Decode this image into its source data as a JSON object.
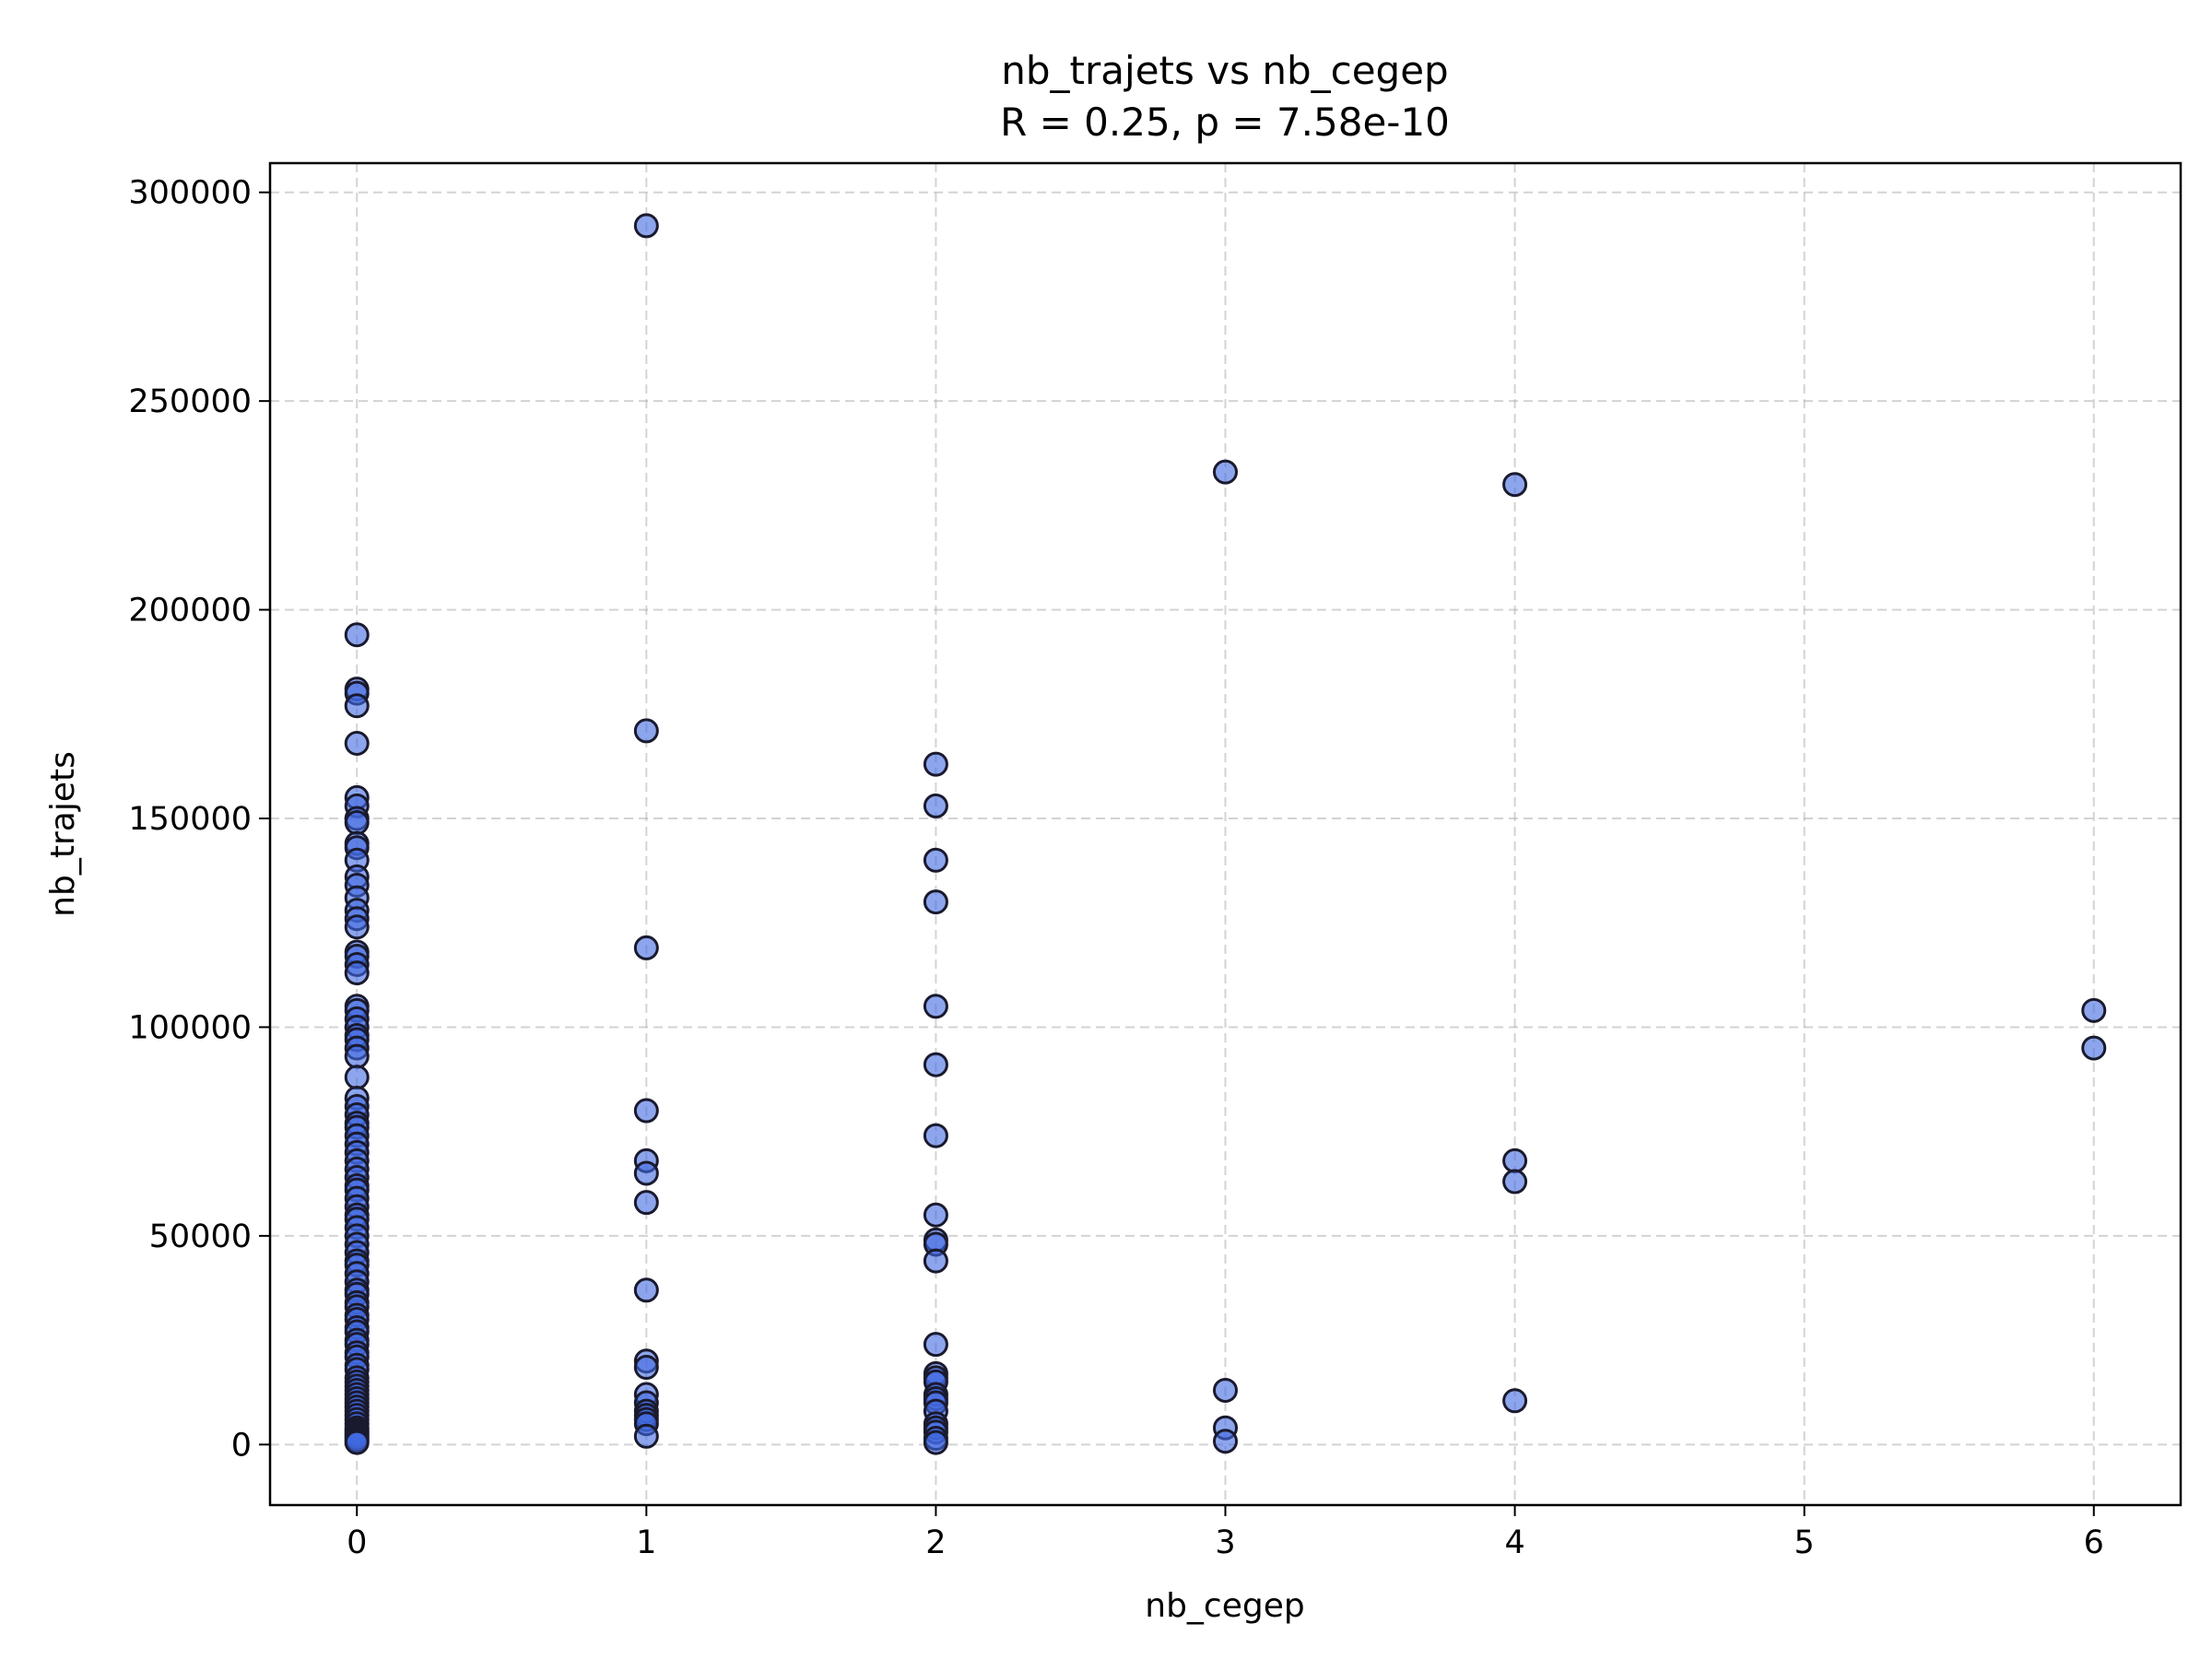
{
  "chart_data": {
    "type": "scatter",
    "title": "nb_trajets vs nb_cegep",
    "subtitle": "R = 0.25, p = 7.58e-10",
    "xlabel": "nb_cegep",
    "ylabel": "nb_trajets",
    "xlim": [
      -0.3,
      6.3
    ],
    "ylim": [
      -14500,
      307000
    ],
    "x_ticks": [
      0,
      1,
      2,
      3,
      4,
      5,
      6
    ],
    "y_ticks": [
      0,
      50000,
      100000,
      150000,
      200000,
      250000,
      300000
    ],
    "grid": true,
    "marker_color": "#4169e1",
    "marker_edge_color": "#1a1a2e",
    "series": [
      {
        "x": [
          0,
          0,
          0,
          0,
          0,
          0,
          0,
          0,
          0,
          0,
          0,
          0,
          0,
          0,
          0,
          0,
          0,
          0,
          0,
          0,
          0,
          0,
          0,
          0,
          0,
          0,
          0,
          0,
          0,
          0,
          0,
          0,
          0,
          0,
          0,
          0,
          0,
          0,
          0,
          0,
          0,
          0,
          0,
          0,
          0,
          0,
          0,
          0,
          0,
          0,
          0,
          0,
          0,
          0,
          0,
          0,
          0,
          0,
          0,
          0,
          0,
          0,
          0,
          0,
          0,
          0,
          0,
          0,
          0,
          0,
          0,
          0,
          0,
          0,
          0,
          0,
          0,
          0,
          0,
          0,
          0,
          0,
          0,
          0,
          0,
          0,
          0,
          0,
          0,
          0,
          1,
          1,
          1,
          1,
          1,
          1,
          1,
          1,
          1,
          1,
          1,
          1,
          1,
          1,
          1,
          1,
          1,
          2,
          2,
          2,
          2,
          2,
          2,
          2,
          2,
          2,
          2,
          2,
          2,
          2,
          2,
          2,
          2,
          2,
          2,
          2,
          2,
          2,
          2,
          2,
          2,
          3,
          3,
          3,
          3,
          4,
          4,
          4,
          4,
          6,
          6
        ],
        "y": [
          194000,
          181000,
          180000,
          177000,
          168000,
          155000,
          153000,
          150000,
          149000,
          144000,
          143000,
          140000,
          136000,
          134000,
          131000,
          128000,
          126000,
          124000,
          118000,
          117000,
          115000,
          113000,
          105000,
          104000,
          102000,
          100000,
          98000,
          97000,
          95000,
          93000,
          88000,
          83000,
          81000,
          79000,
          77000,
          76000,
          74000,
          72000,
          70000,
          68000,
          66000,
          64000,
          62000,
          61000,
          59000,
          57000,
          55000,
          54000,
          52000,
          50000,
          48000,
          46000,
          44000,
          43000,
          41000,
          39000,
          37000,
          36000,
          34000,
          33000,
          31000,
          30000,
          28000,
          27000,
          25000,
          24000,
          22000,
          21000,
          19000,
          18000,
          16000,
          15000,
          14000,
          13000,
          12000,
          11000,
          10000,
          9000,
          8000,
          7000,
          6000,
          5000,
          4000,
          3500,
          3000,
          2500,
          2000,
          1500,
          1000,
          500,
          292000,
          171000,
          119000,
          80000,
          68000,
          65000,
          58000,
          37000,
          20000,
          18500,
          12000,
          10000,
          8000,
          7000,
          6000,
          5000,
          2000,
          163000,
          153000,
          140000,
          130000,
          105000,
          91000,
          74000,
          55000,
          49000,
          48000,
          44000,
          24000,
          17000,
          16000,
          15000,
          12000,
          11000,
          10000,
          8000,
          5000,
          4000,
          3000,
          1500,
          500,
          233000,
          13000,
          4000,
          800,
          230000,
          68000,
          63000,
          10500,
          104000,
          95000
        ]
      }
    ]
  }
}
